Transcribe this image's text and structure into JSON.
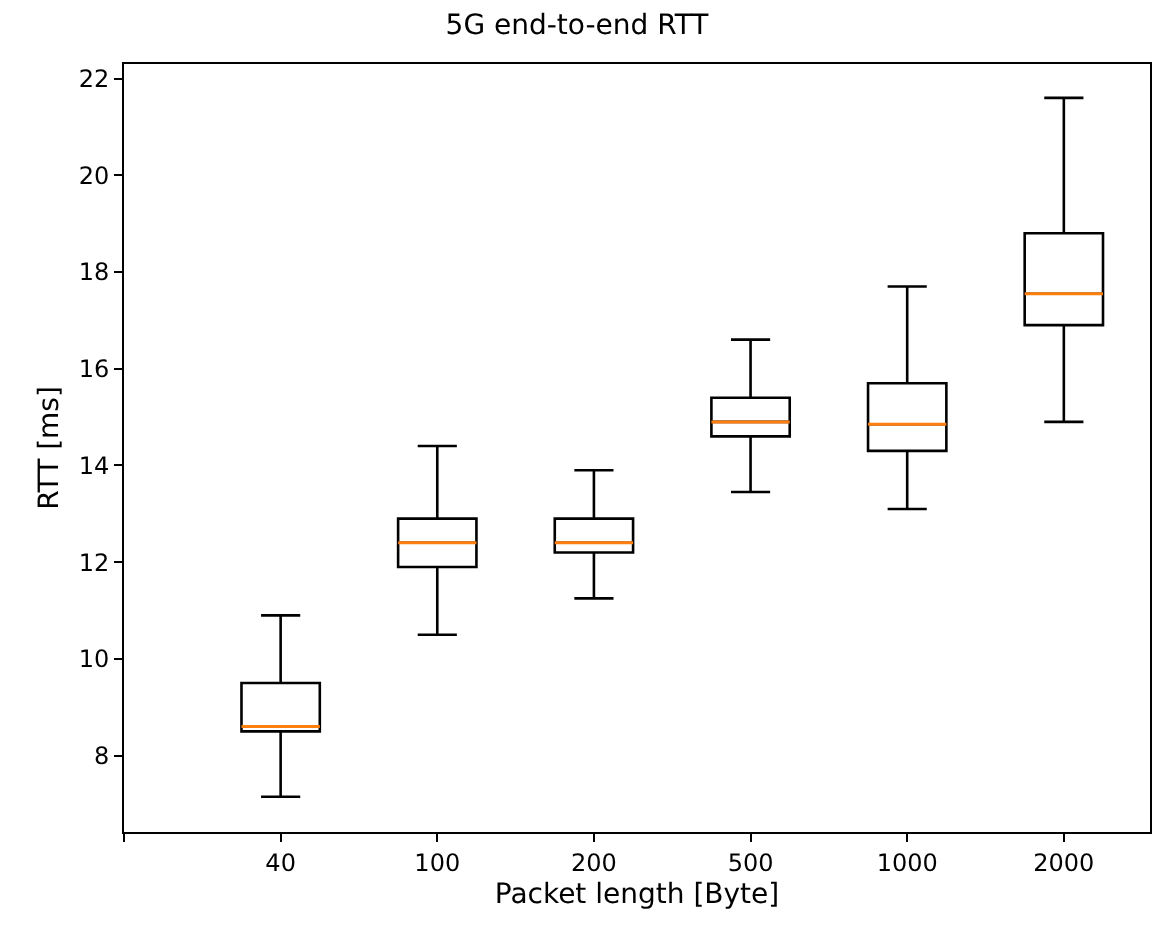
{
  "chart_data": {
    "type": "box",
    "title": "5G end-to-end RTT",
    "xlabel": "Packet length [Byte]",
    "ylabel": "RTT [ms]",
    "categories": [
      null,
      "40",
      "100",
      "200",
      "500",
      "1000",
      "2000"
    ],
    "boxes": [
      null,
      {
        "low": 7.15,
        "q1": 8.5,
        "median": 8.6,
        "q3": 9.5,
        "high": 10.9
      },
      {
        "low": 10.5,
        "q1": 11.9,
        "median": 12.4,
        "q3": 12.9,
        "high": 14.4
      },
      {
        "low": 11.25,
        "q1": 12.2,
        "median": 12.4,
        "q3": 12.9,
        "high": 13.9
      },
      {
        "low": 13.45,
        "q1": 14.6,
        "median": 14.9,
        "q3": 15.4,
        "high": 16.6
      },
      {
        "low": 13.1,
        "q1": 14.3,
        "median": 14.85,
        "q3": 15.7,
        "high": 17.7
      },
      {
        "low": 14.9,
        "q1": 16.9,
        "median": 17.55,
        "q3": 18.8,
        "high": 21.6
      }
    ],
    "color": "#000000",
    "ylim": [
      6.42,
      22.3
    ],
    "yticks": [
      8,
      10,
      12,
      14,
      16,
      18,
      20,
      22
    ]
  }
}
